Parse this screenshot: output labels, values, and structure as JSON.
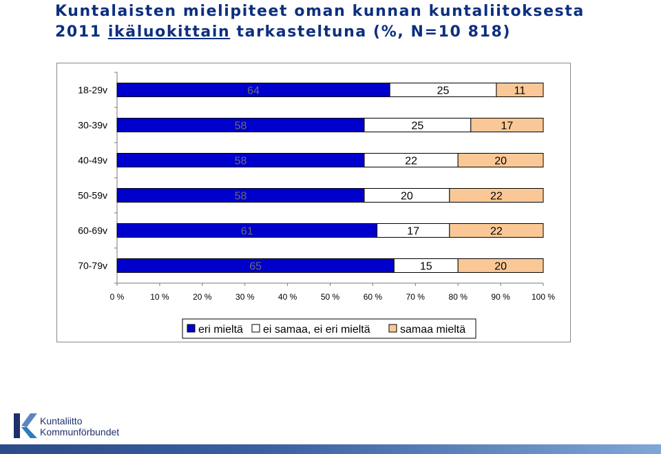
{
  "title": {
    "line1": "Kuntalaisten mielipiteet oman kunnan kuntaliitoksesta",
    "line2_prefix": "2011 ",
    "line2_underlined": "ikäluokittain",
    "line2_suffix": " tarkasteltuna (%, N=10 818)"
  },
  "chart_data": {
    "type": "bar",
    "orientation": "horizontal",
    "stacking": "percent",
    "categories": [
      "18-29v",
      "30-39v",
      "40-49v",
      "50-59v",
      "60-69v",
      "70-79v"
    ],
    "series": [
      {
        "name": "eri mieltä",
        "color": "#0000cc",
        "values": [
          64,
          58,
          58,
          58,
          61,
          65
        ]
      },
      {
        "name": "ei samaa, ei eri mieltä",
        "color": "#ffffff",
        "values": [
          25,
          25,
          22,
          20,
          17,
          15
        ]
      },
      {
        "name": "samaa mieltä",
        "color": "#fac896",
        "values": [
          11,
          17,
          20,
          22,
          22,
          20
        ]
      }
    ],
    "x_ticks": [
      "0 %",
      "10 %",
      "20 %",
      "30 %",
      "40 %",
      "50 %",
      "60 %",
      "70 %",
      "80 %",
      "90 %",
      "100 %"
    ],
    "xlim": [
      0,
      100
    ],
    "legend_position": "bottom",
    "data_labels": true,
    "grid": false
  },
  "logo": {
    "line1": "Kuntaliitto",
    "line2": "Kommunförbundet"
  },
  "colors": {
    "title": "#0d2f7e",
    "label_on_blue": "#6b6b6b"
  }
}
